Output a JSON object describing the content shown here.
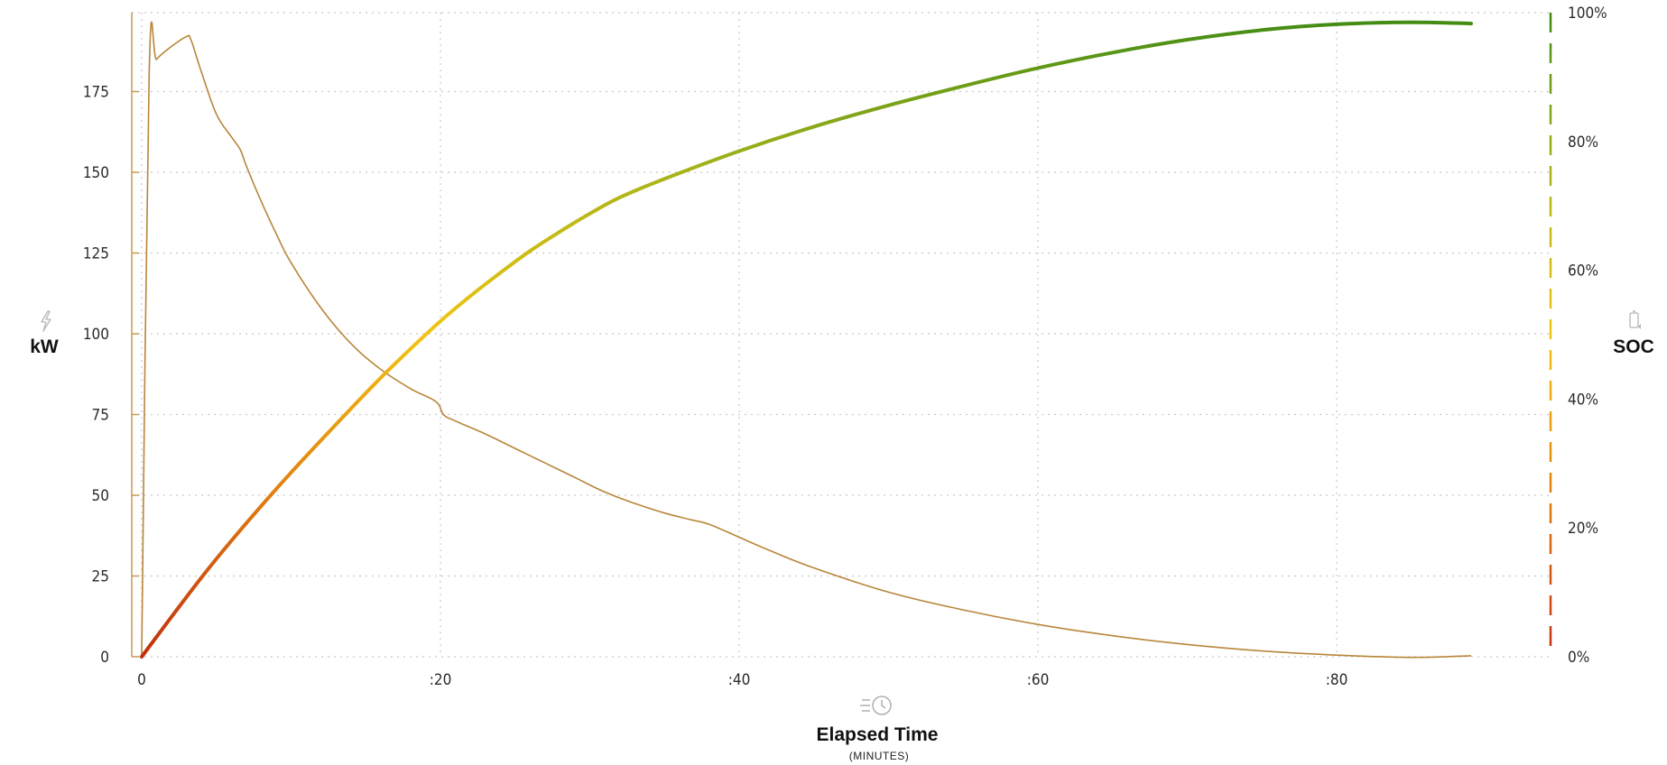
{
  "chart_data": {
    "type": "line",
    "x_axis": {
      "label": "Elapsed Time",
      "sublabel": "(MINUTES)",
      "icon": "clock-speed-icon",
      "range": [
        0,
        94
      ],
      "ticks": [
        0,
        20,
        40,
        60,
        80
      ],
      "tick_labels": [
        "0",
        ":20",
        ":40",
        ":60",
        ":80"
      ]
    },
    "y_axis_left": {
      "label": "kW",
      "icon": "lightning-icon",
      "range": [
        0,
        200
      ],
      "ticks": [
        0,
        25,
        50,
        75,
        100,
        125,
        150,
        175
      ],
      "tick_labels": [
        "0",
        "25",
        "50",
        "75",
        "100",
        "125",
        "150",
        "175"
      ]
    },
    "y_axis_right": {
      "label": "SOC",
      "icon": "battery-icon",
      "range": [
        0,
        100
      ],
      "ticks": [
        0,
        20,
        40,
        60,
        80,
        100
      ],
      "tick_labels": [
        "0%",
        "20%",
        "40%",
        "60%",
        "80%",
        "100%"
      ]
    },
    "grid": true,
    "series": [
      {
        "axis": "left",
        "color": "#b8863a",
        "x": [
          0,
          0.5,
          1,
          2,
          3,
          3.3,
          4,
          5,
          6,
          6.6,
          7,
          8,
          9,
          10,
          12,
          14,
          16,
          18,
          19.7,
          20.2,
          21,
          23,
          25,
          27,
          29,
          31,
          33,
          35,
          36.7,
          38,
          40,
          42,
          45,
          50,
          55,
          60,
          65,
          70,
          75,
          80,
          85,
          89
        ],
        "values": [
          0,
          181,
          185,
          189,
          192,
          191,
          181,
          168,
          161,
          157,
          152,
          141,
          131,
          122,
          108,
          97,
          89,
          83,
          79,
          75,
          73,
          69,
          64.5,
          60,
          55.5,
          51,
          47.5,
          44.5,
          42.5,
          41,
          37,
          33,
          27.5,
          20,
          14.5,
          10,
          6.5,
          3.8,
          1.8,
          0.5,
          -0.2,
          0.3
        ]
      },
      {
        "axis": "right",
        "gradient": [
          "#c0300f",
          "#e07e10",
          "#f2c412",
          "#a8b41a",
          "#3d8a14"
        ],
        "x": [
          0,
          2,
          4,
          6,
          8,
          10,
          12,
          14,
          16,
          18,
          20,
          22,
          24,
          26,
          28,
          30,
          32,
          35,
          40,
          45,
          50,
          55,
          60,
          65,
          70,
          75,
          80,
          85,
          89
        ],
        "values": [
          0,
          6.2,
          12.3,
          18.0,
          23.4,
          28.6,
          33.6,
          38.5,
          43.3,
          47.8,
          52.1,
          56.0,
          59.6,
          63.0,
          66.0,
          68.8,
          71.3,
          74.2,
          78.5,
          82.3,
          85.6,
          88.6,
          91.4,
          93.8,
          95.8,
          97.3,
          98.2,
          98.5,
          98.3
        ]
      }
    ]
  }
}
